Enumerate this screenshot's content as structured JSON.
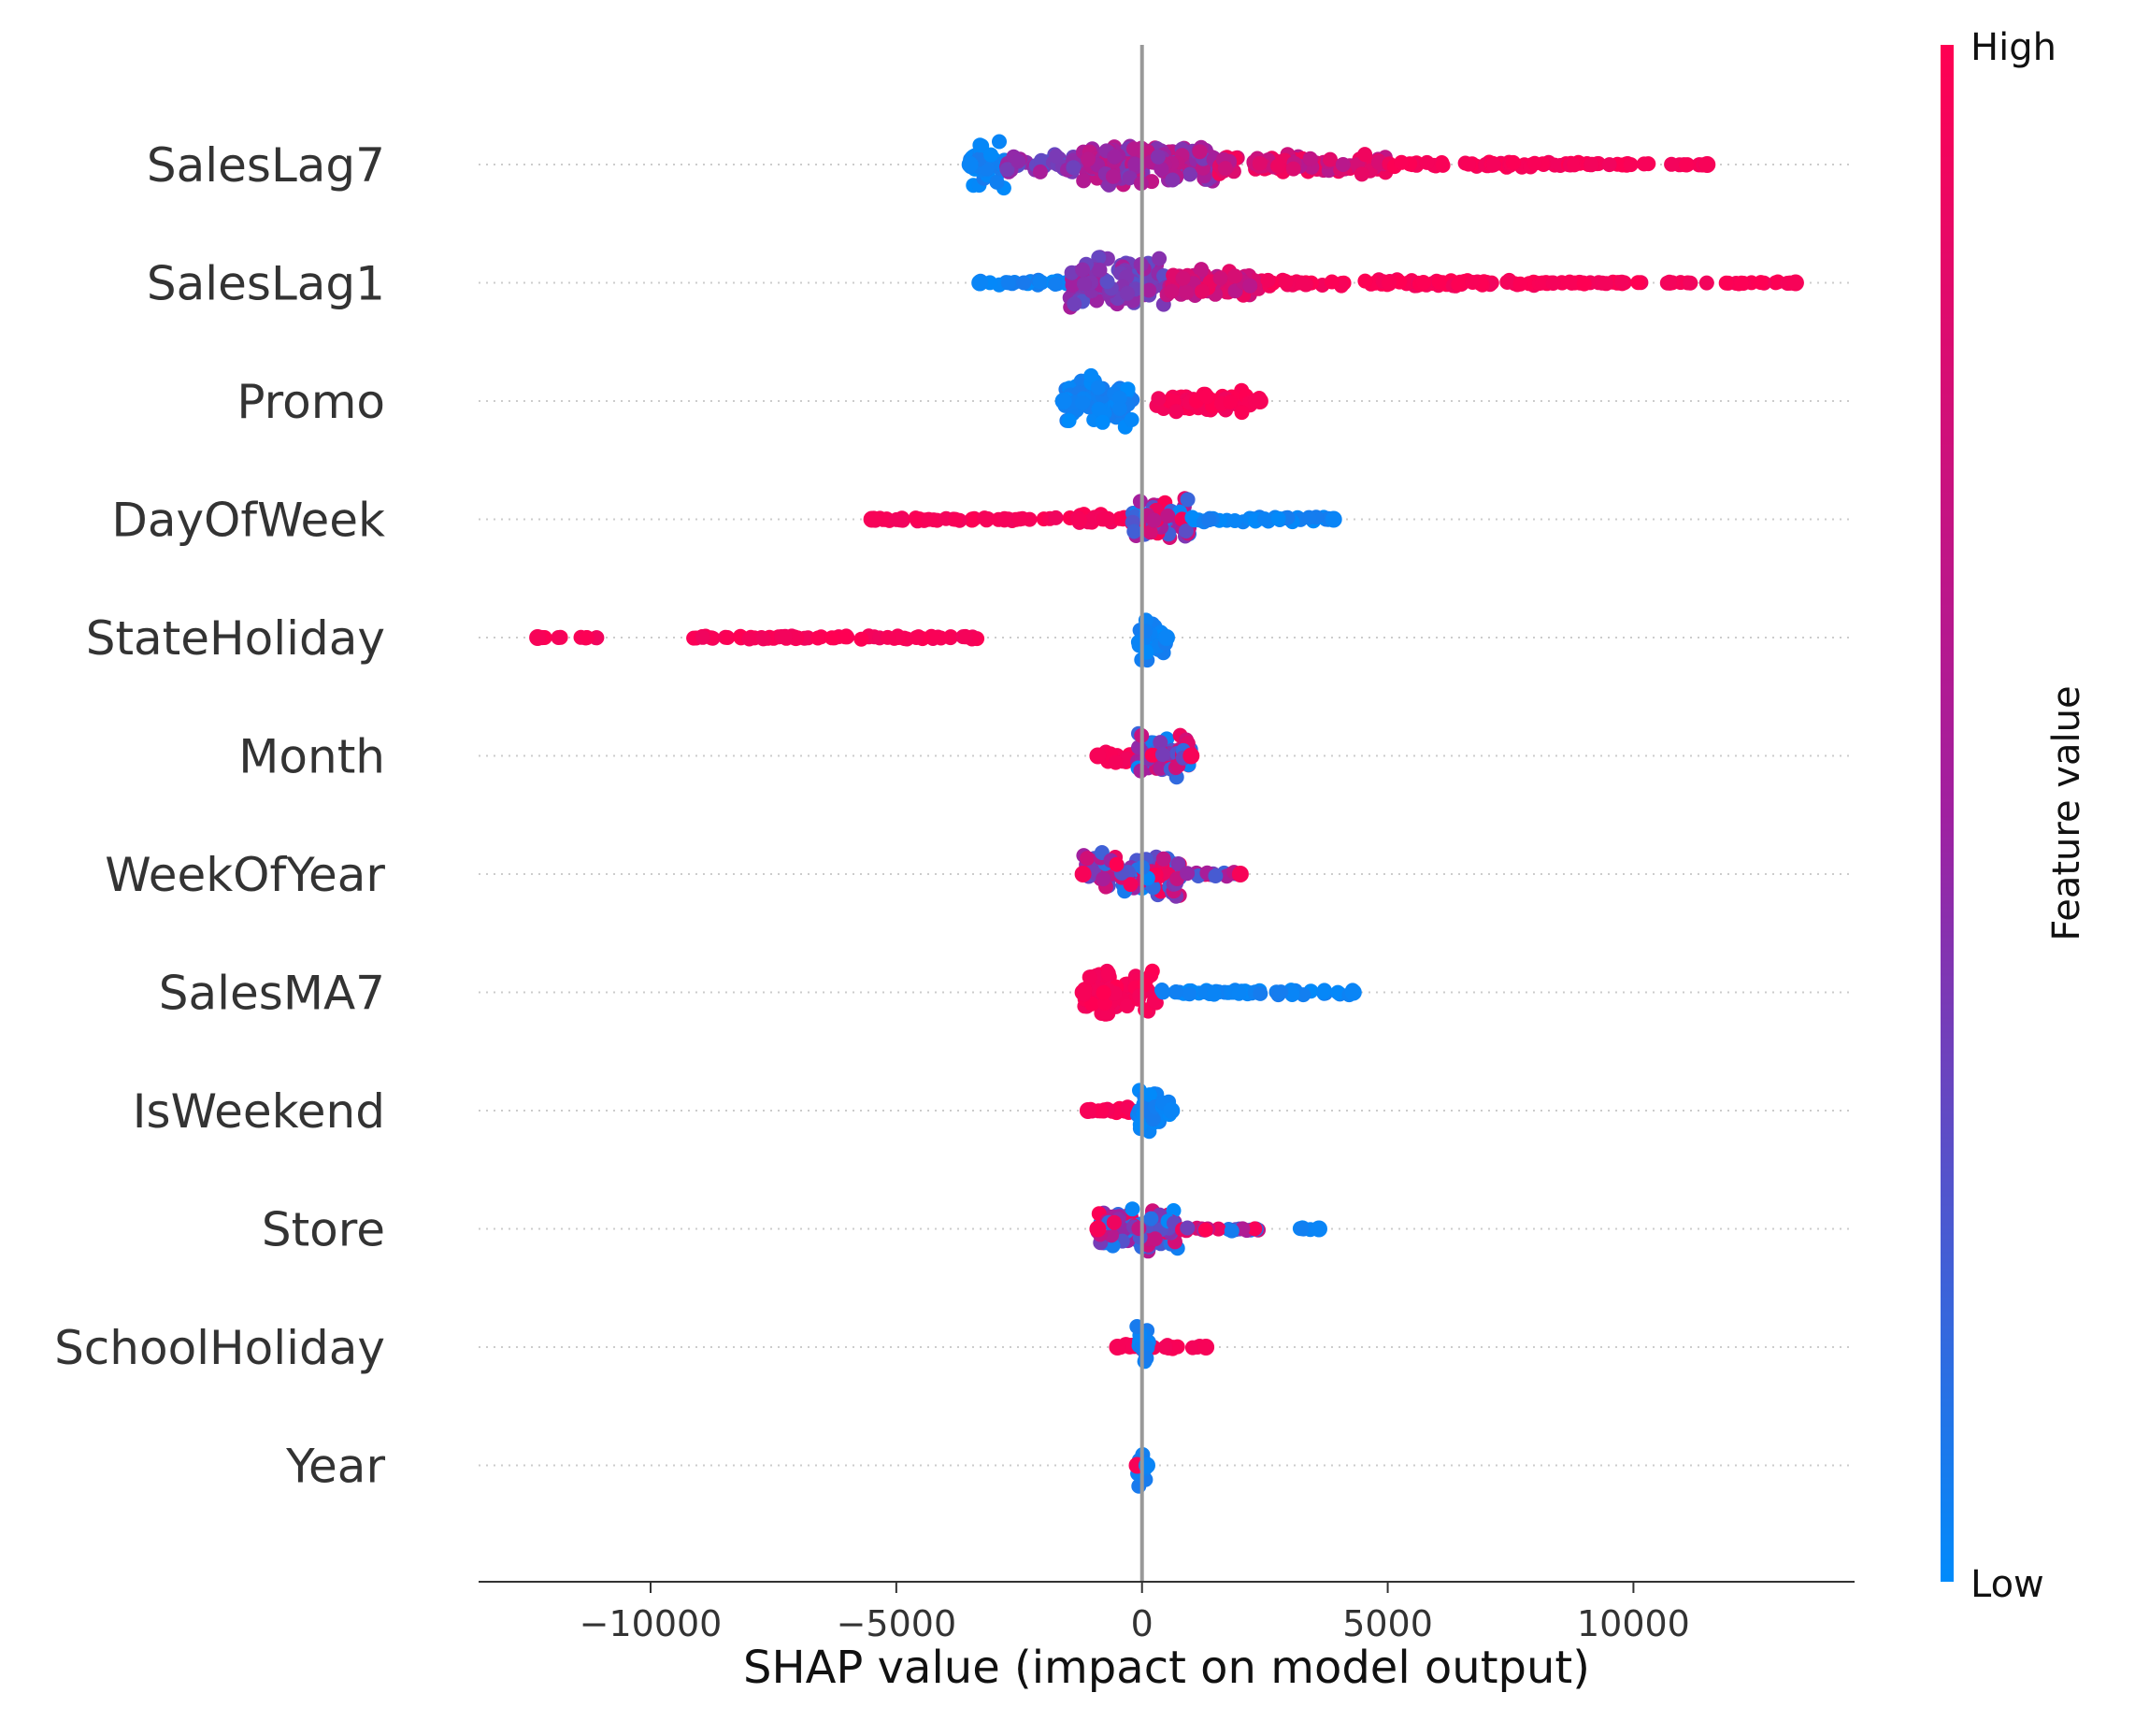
{
  "chart_data": {
    "type": "scatter",
    "subtype": "shap-beeswarm",
    "title": "",
    "xlabel": "SHAP value (impact on model output)",
    "xlim": [
      -13500,
      14500
    ],
    "xticks": [
      -10000,
      -5000,
      0,
      5000,
      10000
    ],
    "xtick_labels": [
      "−10000",
      "−5000",
      "0",
      "5000",
      "10000"
    ],
    "grid": "horizontal-dotted",
    "colorbar": {
      "label": "Feature value",
      "high_label": "High",
      "low_label": "Low",
      "low_color": "#008bfb",
      "mid_color": "#a020a0",
      "high_color": "#ff0052"
    },
    "features": [
      {
        "name": "SalesLag7",
        "min": -3500,
        "max": 11500,
        "clusters": [
          {
            "from": -3500,
            "to": -2800,
            "width": 0.45,
            "color": "low"
          },
          {
            "from": -2800,
            "to": -1200,
            "width": 0.18,
            "color": "mid-low"
          },
          {
            "from": -1200,
            "to": 1500,
            "width": 0.42,
            "color": "mid"
          },
          {
            "from": 1500,
            "to": 5000,
            "width": 0.18,
            "color": "mid-high"
          },
          {
            "from": 5000,
            "to": 9000,
            "width": 0.05,
            "color": "high"
          },
          {
            "from": 9000,
            "to": 11500,
            "width": 0.02,
            "color": "high"
          }
        ]
      },
      {
        "name": "SalesLag1",
        "min": -3300,
        "max": 13300,
        "clusters": [
          {
            "from": -3300,
            "to": -1500,
            "width": 0.05,
            "color": "low"
          },
          {
            "from": -1500,
            "to": 500,
            "width": 0.45,
            "color": "mid-low"
          },
          {
            "from": 500,
            "to": 2500,
            "width": 0.25,
            "color": "mid-high"
          },
          {
            "from": 2500,
            "to": 8000,
            "width": 0.06,
            "color": "high"
          },
          {
            "from": 8000,
            "to": 13300,
            "width": 0.02,
            "color": "high"
          }
        ]
      },
      {
        "name": "Promo",
        "min": -1600,
        "max": 2400,
        "clusters": [
          {
            "from": -1600,
            "to": -200,
            "width": 0.45,
            "color": "low"
          },
          {
            "from": 300,
            "to": 2400,
            "width": 0.2,
            "color": "high"
          }
        ]
      },
      {
        "name": "DayOfWeek",
        "min": -5500,
        "max": 3900,
        "clusters": [
          {
            "from": -5500,
            "to": -1500,
            "width": 0.03,
            "color": "high"
          },
          {
            "from": -1500,
            "to": -200,
            "width": 0.1,
            "color": "high"
          },
          {
            "from": -200,
            "to": 1000,
            "width": 0.4,
            "color": "mix"
          },
          {
            "from": 1000,
            "to": 3900,
            "width": 0.05,
            "color": "low"
          }
        ]
      },
      {
        "name": "StateHoliday",
        "min": -12300,
        "max": 500,
        "clusters": [
          {
            "from": -12300,
            "to": -11000,
            "width": 0.01,
            "color": "high"
          },
          {
            "from": -9500,
            "to": -3200,
            "width": 0.03,
            "color": "high"
          },
          {
            "from": -100,
            "to": 500,
            "width": 0.45,
            "color": "low"
          }
        ]
      },
      {
        "name": "Month",
        "min": -900,
        "max": 1000,
        "clusters": [
          {
            "from": -900,
            "to": 0,
            "width": 0.12,
            "color": "high"
          },
          {
            "from": -100,
            "to": 1000,
            "width": 0.4,
            "color": "mix"
          }
        ]
      },
      {
        "name": "WeekOfYear",
        "min": -1200,
        "max": 2000,
        "clusters": [
          {
            "from": -1200,
            "to": 800,
            "width": 0.4,
            "color": "mix"
          },
          {
            "from": 800,
            "to": 2000,
            "width": 0.04,
            "color": "mix"
          }
        ]
      },
      {
        "name": "SalesMA7",
        "min": -1200,
        "max": 4300,
        "clusters": [
          {
            "from": -1200,
            "to": 300,
            "width": 0.4,
            "color": "high"
          },
          {
            "from": 300,
            "to": 4300,
            "width": 0.05,
            "color": "low"
          }
        ]
      },
      {
        "name": "IsWeekend",
        "min": -1100,
        "max": 600,
        "clusters": [
          {
            "from": -1100,
            "to": -100,
            "width": 0.08,
            "color": "high"
          },
          {
            "from": -100,
            "to": 600,
            "width": 0.42,
            "color": "low"
          }
        ]
      },
      {
        "name": "Store",
        "min": -900,
        "max": 3600,
        "clusters": [
          {
            "from": -900,
            "to": 800,
            "width": 0.42,
            "color": "mix"
          },
          {
            "from": 800,
            "to": 2400,
            "width": 0.04,
            "color": "mix"
          },
          {
            "from": 3200,
            "to": 3600,
            "width": 0.02,
            "color": "low"
          }
        ]
      },
      {
        "name": "SchoolHoliday",
        "min": -500,
        "max": 1300,
        "clusters": [
          {
            "from": -500,
            "to": 1300,
            "width": 0.06,
            "color": "high"
          },
          {
            "from": -150,
            "to": 150,
            "width": 0.42,
            "color": "low"
          }
        ]
      },
      {
        "name": "Year",
        "min": -100,
        "max": 100,
        "clusters": [
          {
            "from": -100,
            "to": 100,
            "width": 0.42,
            "color": "low"
          }
        ]
      }
    ]
  }
}
